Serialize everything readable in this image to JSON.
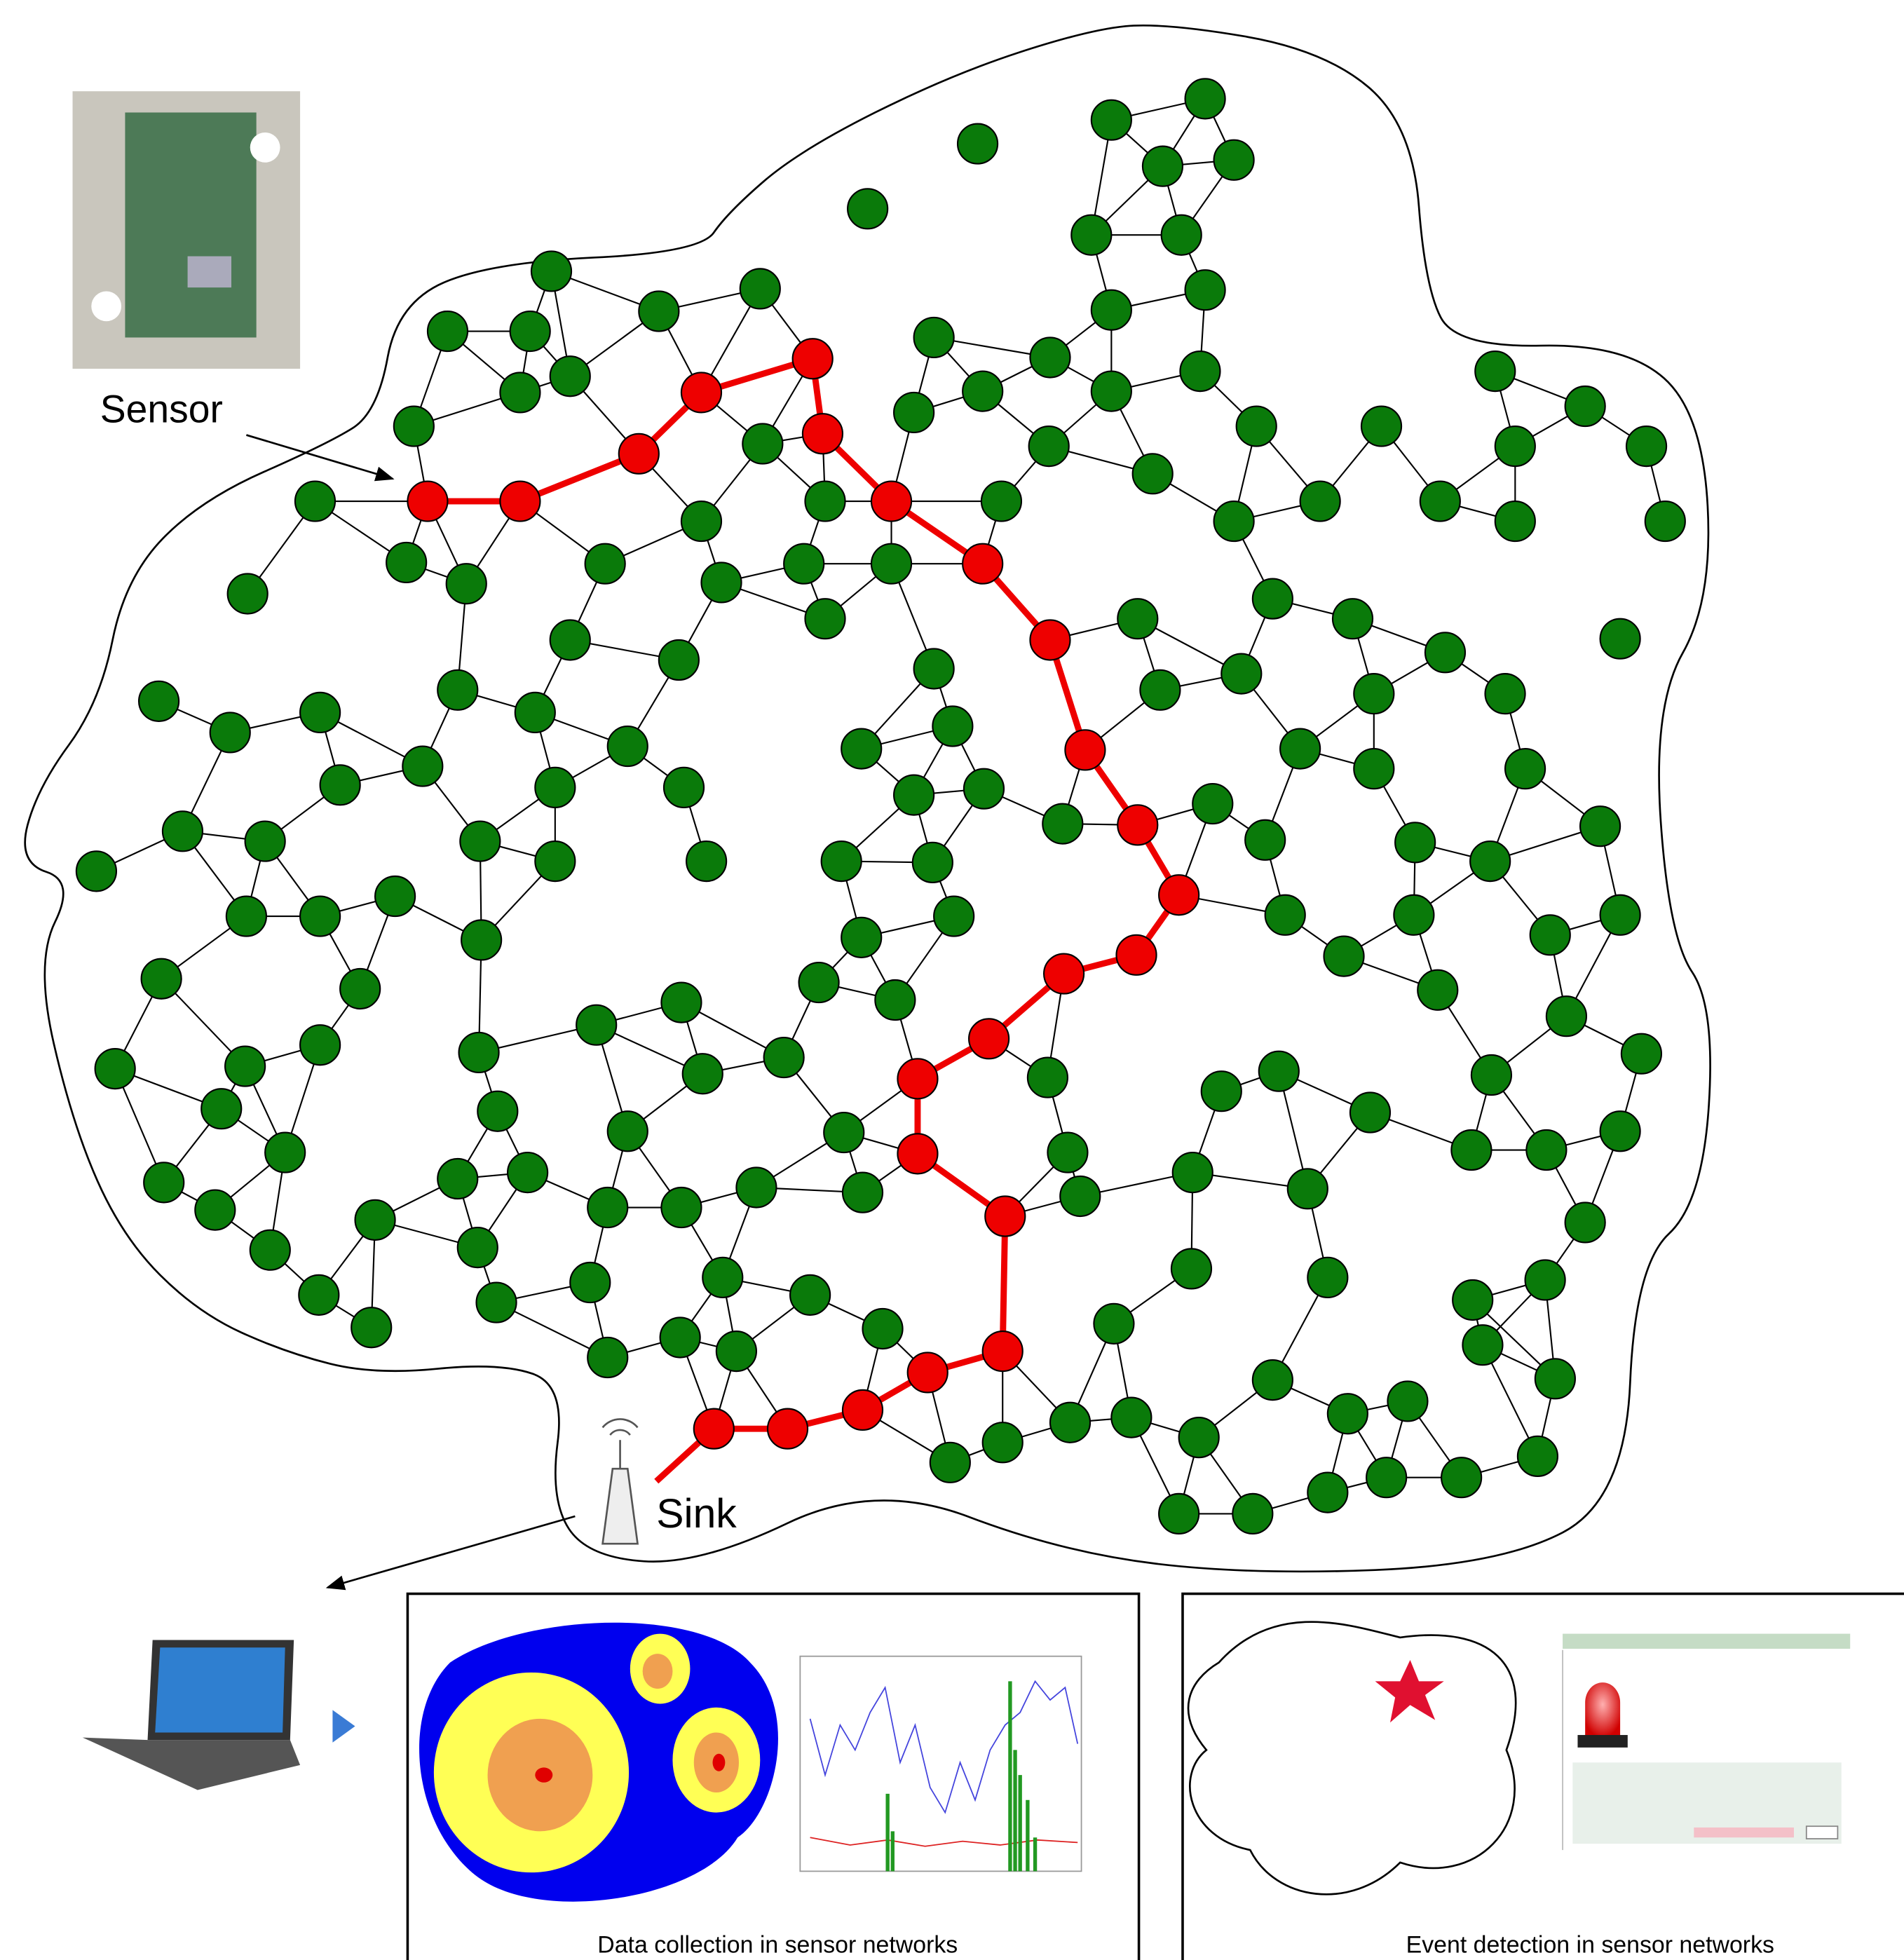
{
  "labels": {
    "sensor": "Sensor",
    "sink": "Sink"
  },
  "panels": [
    {
      "caption": "Data collection in sensor networks"
    },
    {
      "caption": "Event detection in sensor networks"
    }
  ]
}
